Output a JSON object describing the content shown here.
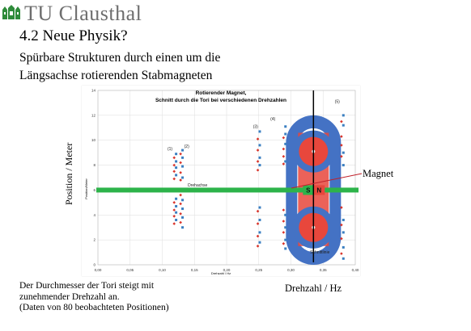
{
  "header": {
    "institution": "TU Clausthal",
    "slide_title": "4.2 Neue Physik?",
    "subtitle_line1": "Spürbare Strukturen durch einen um die",
    "subtitle_line2": "Längsachse rotierenden Stabmagneten",
    "logo_icon": "tu-clausthal-logo-icon"
  },
  "labels": {
    "side_axis": "Position / Meter",
    "drehzahl_axis": "Drehzahl / Hz",
    "magnet": "Magnet",
    "note_line1": "Der Durchmesser der Tori steigt mit",
    "note_line2": "zunehmender Drehzahl an.",
    "note_line3": "(Daten von 80 beobachteten Positionen)"
  },
  "colors": {
    "axis_bar": "#2db34a",
    "torus_blue": "#4472c4",
    "magnet_red": "#e8473c",
    "series_blue": "#3a7fc1",
    "series_red": "#d9342b"
  },
  "chart_data": {
    "type": "scatter",
    "title": "Rotierender Magnet, Schnitt durch die Tori bei verschiedenen Drehzahlen",
    "title_line1": "Rotierender Magnet,",
    "title_line2": "Schnitt durch die Tori bei verschiedenen Drehzahlen",
    "xlabel": "Drehzahl / Hz",
    "ylabel": "Position/Meter",
    "xlim": [
      0.0,
      0.4
    ],
    "ylim": [
      0,
      14
    ],
    "x_ticks": [
      "0,00",
      "0,05",
      "0,10",
      "0,15",
      "0,20",
      "0,25",
      "0,30",
      "0,35",
      "0,40"
    ],
    "y_ticks": [
      "0",
      "2",
      "4",
      "6",
      "8",
      "10",
      "12",
      "14"
    ],
    "grid": true,
    "annotations": [
      {
        "text": "Drehachse",
        "x": 0.155,
        "y": 6.3
      },
      {
        "text": "Schnittlinie",
        "x": 0.345,
        "y": 0.9
      },
      {
        "text": "(1)",
        "x": 0.112,
        "y": 9.2
      },
      {
        "text": "(2)",
        "x": 0.138,
        "y": 9.4
      },
      {
        "text": "(3)",
        "x": 0.245,
        "y": 11.0
      },
      {
        "text": "(4)",
        "x": 0.272,
        "y": 11.6
      },
      {
        "text": "(5)",
        "x": 0.372,
        "y": 13.0
      }
    ],
    "magnet_letters": [
      "S",
      "N"
    ],
    "series": [
      {
        "color": "blue",
        "marker": "square",
        "points": [
          [
            0.12,
            8.9
          ],
          [
            0.12,
            8.3
          ],
          [
            0.12,
            7.8
          ],
          [
            0.12,
            7.2
          ],
          [
            0.12,
            5.3
          ],
          [
            0.12,
            4.7
          ],
          [
            0.12,
            4.2
          ],
          [
            0.12,
            3.6
          ],
          [
            0.13,
            9.2
          ],
          [
            0.13,
            8.6
          ],
          [
            0.13,
            7.9
          ],
          [
            0.13,
            7.0
          ],
          [
            0.13,
            5.2
          ],
          [
            0.13,
            4.5
          ],
          [
            0.13,
            3.8
          ],
          [
            0.13,
            3.0
          ],
          [
            0.25,
            10.7
          ],
          [
            0.25,
            9.6
          ],
          [
            0.25,
            8.6
          ],
          [
            0.25,
            8.0
          ],
          [
            0.25,
            4.6
          ],
          [
            0.25,
            3.6
          ],
          [
            0.25,
            2.6
          ],
          [
            0.25,
            1.8
          ],
          [
            0.29,
            11.1
          ],
          [
            0.29,
            10.5
          ],
          [
            0.29,
            9.7
          ],
          [
            0.29,
            8.3
          ],
          [
            0.29,
            4.0
          ],
          [
            0.29,
            3.0
          ],
          [
            0.29,
            2.0
          ],
          [
            0.29,
            1.3
          ],
          [
            0.38,
            12.0
          ],
          [
            0.38,
            11.2
          ],
          [
            0.38,
            9.0
          ],
          [
            0.38,
            8.0
          ],
          [
            0.38,
            3.6
          ],
          [
            0.38,
            2.6
          ],
          [
            0.38,
            1.4
          ],
          [
            0.38,
            0.5
          ]
        ]
      },
      {
        "color": "red",
        "marker": "diamond",
        "points": [
          [
            0.12,
            8.6
          ],
          [
            0.12,
            8.0
          ],
          [
            0.12,
            7.5
          ],
          [
            0.12,
            6.9
          ],
          [
            0.12,
            5.0
          ],
          [
            0.12,
            4.4
          ],
          [
            0.12,
            3.9
          ],
          [
            0.12,
            3.3
          ],
          [
            0.13,
            8.9
          ],
          [
            0.13,
            8.2
          ],
          [
            0.13,
            7.4
          ],
          [
            0.13,
            6.8
          ],
          [
            0.13,
            5.6
          ],
          [
            0.13,
            4.9
          ],
          [
            0.13,
            4.1
          ],
          [
            0.13,
            3.4
          ],
          [
            0.25,
            10.1
          ],
          [
            0.25,
            9.2
          ],
          [
            0.25,
            8.3
          ],
          [
            0.25,
            7.6
          ],
          [
            0.25,
            4.3
          ],
          [
            0.25,
            3.3
          ],
          [
            0.25,
            2.3
          ],
          [
            0.25,
            1.5
          ],
          [
            0.29,
            10.2
          ],
          [
            0.29,
            9.3
          ],
          [
            0.29,
            8.7
          ],
          [
            0.29,
            8.1
          ],
          [
            0.29,
            4.4
          ],
          [
            0.29,
            3.5
          ],
          [
            0.29,
            2.6
          ],
          [
            0.29,
            1.7
          ],
          [
            0.38,
            11.5
          ],
          [
            0.38,
            10.3
          ],
          [
            0.38,
            9.6
          ],
          [
            0.38,
            8.7
          ],
          [
            0.38,
            4.6
          ],
          [
            0.38,
            3.2
          ],
          [
            0.38,
            2.1
          ],
          [
            0.38,
            0.9
          ]
        ]
      }
    ]
  }
}
